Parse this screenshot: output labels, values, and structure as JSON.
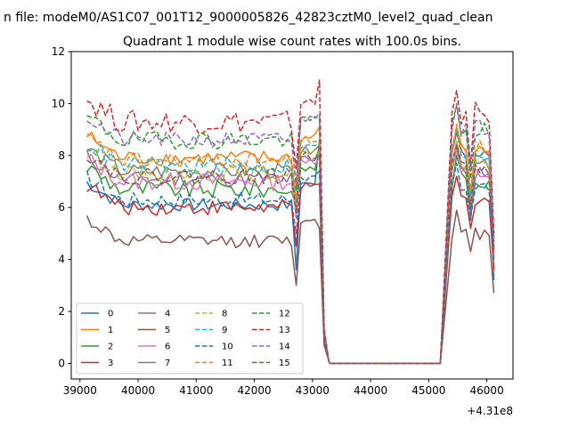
{
  "figure": {
    "suptitle": "n file: modeM0/AS1C07_001T12_9000005826_42823cztM0_level2_quad_clean",
    "title": "Quadrant 1 module wise count rates with 100.0s bins."
  },
  "chart_data": {
    "type": "line",
    "title": "Quadrant 1 module wise count rates with 100.0s bins.",
    "xlabel": "",
    "ylabel": "",
    "x_offset_label": "+4.31e8",
    "xlim": [
      38850,
      46450
    ],
    "ylim": [
      -0.6,
      12
    ],
    "x_ticks": [
      39000,
      40000,
      41000,
      42000,
      43000,
      44000,
      45000,
      46000
    ],
    "x_tick_labels": [
      "39000",
      "40000",
      "41000",
      "42000",
      "43000",
      "44000",
      "45000",
      "46000"
    ],
    "y_ticks": [
      0,
      2,
      4,
      6,
      8,
      10,
      12
    ],
    "y_tick_labels": [
      "0",
      "2",
      "4",
      "6",
      "8",
      "10",
      "12"
    ],
    "grid": false,
    "legend": {
      "placement": "lower-left",
      "ncol": 4
    },
    "x_segments": {
      "gap_fill": {
        "x_start": 43300,
        "x_end": 45200,
        "value": 0
      },
      "pre": {
        "x_start": 39120,
        "x_end": 43280,
        "step": 80
      },
      "post": {
        "x_start": 45400,
        "x_end": 46130,
        "step": 80
      }
    },
    "series": [
      {
        "name": "0",
        "color": "#1f77b4",
        "dash": "solid",
        "base": 6.1,
        "amp": 0.25,
        "dip": 3.6,
        "spike": 8.6,
        "post_level": 8.0,
        "post_dip": 5.5,
        "end": 3.2
      },
      {
        "name": "1",
        "color": "#ff7f0e",
        "dash": "solid",
        "base": 7.9,
        "amp": 0.3,
        "dip": 6.2,
        "spike": 9.1,
        "post_level": 8.2,
        "post_dip": 6.4,
        "end": 4.5
      },
      {
        "name": "2",
        "color": "#2ca02c",
        "dash": "solid",
        "base": 6.7,
        "amp": 0.35,
        "dip": 6.0,
        "spike": 8.2,
        "post_level": 7.1,
        "post_dip": 5.8,
        "end": 4.4
      },
      {
        "name": "3",
        "color": "#d62728",
        "dash": "solid",
        "base": 6.0,
        "amp": 0.3,
        "dip": 4.5,
        "spike": 6.9,
        "post_level": 6.3,
        "post_dip": 5.2,
        "end": 3.6
      },
      {
        "name": "4",
        "color": "#9467bd",
        "dash": "solid",
        "base": 7.1,
        "amp": 0.3,
        "dip": 5.6,
        "spike": 8.3,
        "post_level": 7.4,
        "post_dip": 5.9,
        "end": 4.0
      },
      {
        "name": "5",
        "color": "#8c564b",
        "dash": "solid",
        "base": 4.7,
        "amp": 0.25,
        "dip": 3.0,
        "spike": 5.2,
        "post_level": 5.0,
        "post_dip": 4.3,
        "end": 2.7
      },
      {
        "name": "6",
        "color": "#e377c2",
        "dash": "solid",
        "base": 7.0,
        "amp": 0.35,
        "dip": 5.7,
        "spike": 7.9,
        "post_level": 7.3,
        "post_dip": 6.0,
        "end": 4.2
      },
      {
        "name": "7",
        "color": "#7f7f7f",
        "dash": "solid",
        "base": 7.4,
        "amp": 0.3,
        "dip": 6.0,
        "spike": 8.4,
        "post_level": 7.6,
        "post_dip": 6.1,
        "end": 4.5
      },
      {
        "name": "8",
        "color": "#bcbd22",
        "dash": "dashed",
        "base": 7.3,
        "amp": 0.3,
        "dip": 5.9,
        "spike": 8.0,
        "post_level": 7.7,
        "post_dip": 6.3,
        "end": 4.6
      },
      {
        "name": "9",
        "color": "#17becf",
        "dash": "dashed",
        "base": 7.6,
        "amp": 0.35,
        "dip": 6.3,
        "spike": 8.5,
        "post_level": 8.1,
        "post_dip": 6.5,
        "end": 4.3
      },
      {
        "name": "10",
        "color": "#1f77b4",
        "dash": "dashed",
        "base": 6.3,
        "amp": 0.3,
        "dip": 5.0,
        "spike": 7.4,
        "post_level": 6.8,
        "post_dip": 5.6,
        "end": 3.9
      },
      {
        "name": "11",
        "color": "#ff7f0e",
        "dash": "dashed",
        "base": 7.8,
        "amp": 0.3,
        "dip": 6.4,
        "spike": 8.5,
        "post_level": 8.3,
        "post_dip": 6.7,
        "end": 4.8
      },
      {
        "name": "12",
        "color": "#2ca02c",
        "dash": "dashed",
        "base": 8.6,
        "amp": 0.35,
        "dip": 6.7,
        "spike": 9.4,
        "post_level": 9.0,
        "post_dip": 7.1,
        "end": 4.9
      },
      {
        "name": "13",
        "color": "#d62728",
        "dash": "dashed",
        "base": 9.3,
        "amp": 0.45,
        "dip": 7.5,
        "spike": 10.9,
        "post_level": 9.6,
        "post_dip": 7.6,
        "end": 5.0
      },
      {
        "name": "14",
        "color": "#9467bd",
        "dash": "dashed",
        "base": 8.6,
        "amp": 0.3,
        "dip": 6.9,
        "spike": 9.6,
        "post_level": 9.1,
        "post_dip": 7.4,
        "end": 4.7
      },
      {
        "name": "15",
        "color": "#8c564b",
        "dash": "dashed",
        "base": 7.2,
        "amp": 0.3,
        "dip": 5.8,
        "spike": 8.0,
        "post_level": 7.5,
        "post_dip": 6.0,
        "end": 4.4
      }
    ]
  }
}
